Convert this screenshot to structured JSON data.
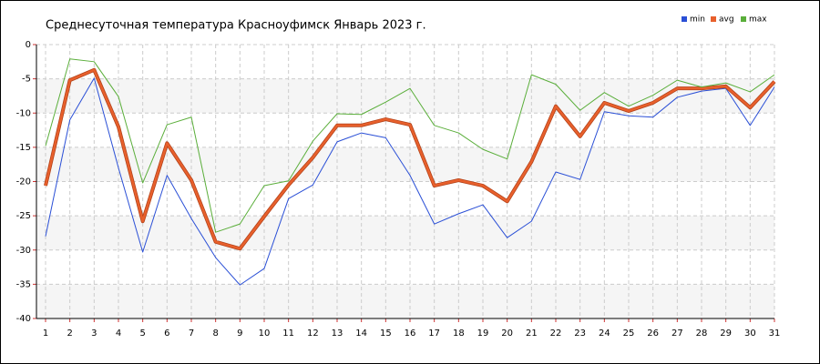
{
  "chart_data": {
    "type": "line",
    "title": "Среднесуточная температура Красноуфимск  Январь 2023 г.",
    "x": [
      1,
      2,
      3,
      4,
      5,
      6,
      7,
      8,
      9,
      10,
      11,
      12,
      13,
      14,
      15,
      16,
      17,
      18,
      19,
      20,
      21,
      22,
      23,
      24,
      25,
      26,
      27,
      28,
      29,
      30,
      31
    ],
    "xlim": [
      1,
      31
    ],
    "xticks": [
      1,
      2,
      3,
      4,
      5,
      6,
      7,
      8,
      9,
      10,
      11,
      12,
      13,
      14,
      15,
      16,
      17,
      18,
      19,
      20,
      21,
      22,
      23,
      24,
      25,
      26,
      27,
      28,
      29,
      30,
      31
    ],
    "ylim": [
      -40,
      0
    ],
    "yticks": [
      0,
      -5,
      -10,
      -15,
      -20,
      -25,
      -30,
      -35,
      -40
    ],
    "grid": true,
    "legend": "top-right",
    "series": [
      {
        "name": "min",
        "color": "#2a4fd6",
        "values": [
          -28,
          -11,
          -4.9,
          -18,
          -30.3,
          -19.1,
          -25.4,
          -31.1,
          -35.1,
          -32.7,
          -22.5,
          -20.5,
          -14.2,
          -12.9,
          -13.6,
          -19.1,
          -26.2,
          -24.7,
          -23.4,
          -28.2,
          -25.8,
          -18.6,
          -19.7,
          -9.8,
          -10.4,
          -10.6,
          -7.7,
          -6.8,
          -6.4,
          -11.8,
          -6.2
        ]
      },
      {
        "name": "avg",
        "color": "#e8602c",
        "values": [
          -20.6,
          -5.2,
          -3.7,
          -12,
          -25.8,
          -14.4,
          -19.8,
          -28.8,
          -29.8,
          -25.1,
          -20.5,
          -16.5,
          -11.8,
          -11.8,
          -10.9,
          -11.7,
          -20.6,
          -19.8,
          -20.6,
          -22.9,
          -17.1,
          -9,
          -13.4,
          -8.5,
          -9.7,
          -8.5,
          -6.4,
          -6.4,
          -6.1,
          -9.2,
          -5.4
        ]
      },
      {
        "name": "max",
        "color": "#5aae3a",
        "values": [
          -14.8,
          -2.1,
          -2.5,
          -7.6,
          -20.2,
          -11.7,
          -10.6,
          -27.4,
          -26.2,
          -20.6,
          -19.9,
          -14.1,
          -10.1,
          -10.2,
          -8.4,
          -6.4,
          -11.8,
          -12.9,
          -15.3,
          -16.7,
          -4.4,
          -5.8,
          -9.6,
          -7,
          -9,
          -7.4,
          -5.2,
          -6.2,
          -5.6,
          -6.9,
          -4.4
        ]
      }
    ]
  }
}
